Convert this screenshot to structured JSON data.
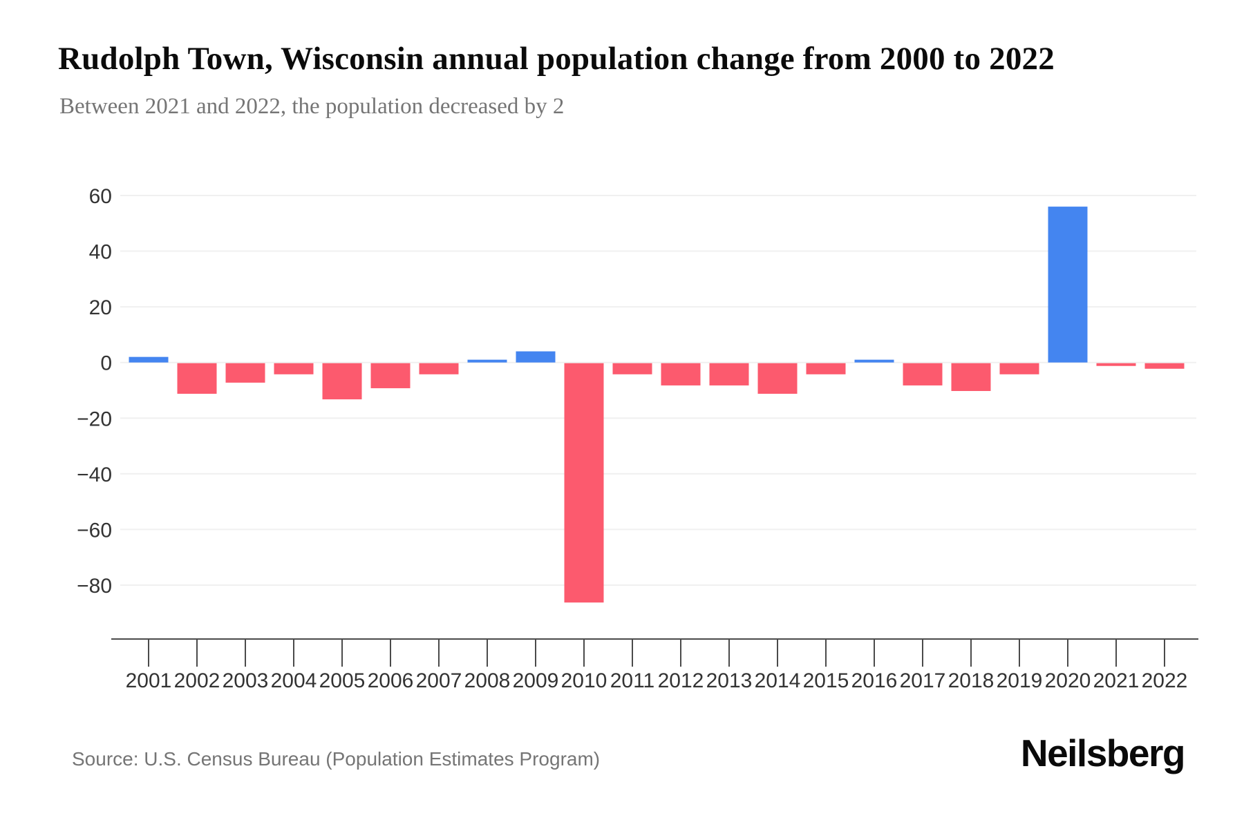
{
  "header": {
    "title": "Rudolph Town, Wisconsin annual population change from 2000 to 2022",
    "subtitle": "Between 2021 and 2022, the population decreased by 2"
  },
  "footer": {
    "source": "Source: U.S. Census Bureau (Population Estimates Program)",
    "brand": "Neilsberg"
  },
  "chart_data": {
    "type": "bar",
    "title": "Rudolph Town, Wisconsin annual population change from 2000 to 2022",
    "subtitle": "Between 2021 and 2022, the population decreased by 2",
    "categories": [
      "2001",
      "2002",
      "2003",
      "2004",
      "2005",
      "2006",
      "2007",
      "2008",
      "2009",
      "2010",
      "2011",
      "2012",
      "2013",
      "2014",
      "2015",
      "2016",
      "2017",
      "2018",
      "2019",
      "2020",
      "2021",
      "2022"
    ],
    "values": [
      2,
      -11,
      -7,
      -4,
      -13,
      -9,
      -4,
      1,
      4,
      -86,
      -4,
      -8,
      -8,
      -11,
      -4,
      1,
      -8,
      -10,
      -4,
      56,
      -1,
      -2
    ],
    "xlabel": "",
    "ylabel": "",
    "yticks": [
      60,
      40,
      20,
      0,
      -20,
      -40,
      -60,
      -80
    ],
    "ylim": [
      -100,
      70
    ],
    "grid": true,
    "legend": false,
    "colors": {
      "positive_bar": "#4485f0",
      "negative_bar": "#fc5a6e",
      "gridline": "#f0f0f0",
      "axis": "#4a4a4a",
      "tick_label": "#333333"
    }
  }
}
